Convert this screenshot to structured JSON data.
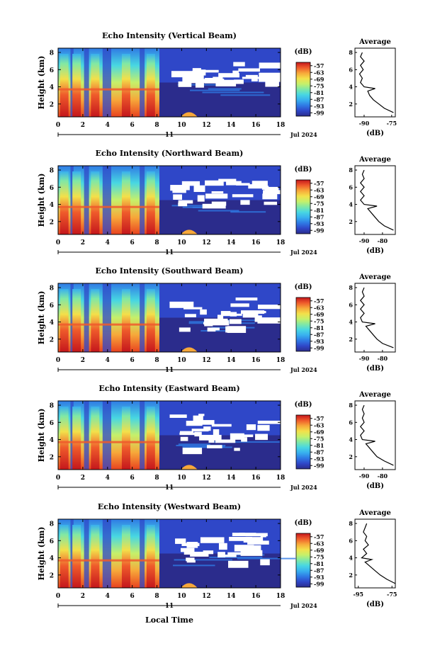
{
  "figure": {
    "xlabel": "Local Time",
    "date_label": "Jul 2024",
    "day_label": "11",
    "ylabel": "Height (km)",
    "colorbar_unit": "(dB)",
    "colorbar_ticks": [
      "-57",
      "-63",
      "-69",
      "-75",
      "-81",
      "-87",
      "-93",
      "-99"
    ],
    "avg_title": "Average",
    "avg_xlabel": "(dB)",
    "x_ticks": [
      "0",
      "2",
      "4",
      "6",
      "8",
      "10",
      "12",
      "14",
      "16",
      "18"
    ],
    "y_ticks": [
      "2",
      "4",
      "6",
      "8"
    ],
    "colormap": [
      "#2b2c8c",
      "#2f47c8",
      "#2f7ae5",
      "#38b0ef",
      "#48d7e2",
      "#7fe8a6",
      "#c6f06a",
      "#f3e04a",
      "#f7a83a",
      "#ef5b2b",
      "#c4161c"
    ]
  },
  "chart_data": [
    {
      "type": "heatmap",
      "title": "Echo Intensity (Vertical Beam)",
      "x": [
        0,
        18
      ],
      "xlim": [
        0,
        18
      ],
      "y": [
        0.5,
        8
      ],
      "ylim": [
        0.5,
        8.5
      ],
      "zlim": [
        -99,
        -57
      ],
      "colorbar_label": "(dB)",
      "features": {
        "tall_columns_hours": [
          0.5,
          1.5,
          3.0,
          5.5,
          7.5
        ],
        "bright_layer_km": 3.7,
        "convective_end_hour": 8.2,
        "weak_echo_bump_hour": 10.6,
        "no_data_region": {
          "hours": [
            9,
            17
          ],
          "km": [
            4.5,
            7
          ]
        }
      },
      "average_profile": {
        "title": "Average",
        "xlabel": "(dB)",
        "xlim": [
          -95,
          -73
        ],
        "xticks": [
          -90,
          -75
        ],
        "height_km": [
          1,
          1.5,
          2,
          2.5,
          3,
          3.5,
          3.8,
          4,
          4.5,
          5,
          5.5,
          6,
          6.5,
          7,
          7.5,
          8
        ],
        "db": [
          -74,
          -79,
          -82,
          -85,
          -87,
          -88,
          -84,
          -90,
          -92,
          -91,
          -92.5,
          -90.5,
          -92,
          -90,
          -92,
          -91
        ]
      }
    },
    {
      "type": "heatmap",
      "title": "Echo Intensity (Northward Beam)",
      "x": [
        0,
        18
      ],
      "xlim": [
        0,
        18
      ],
      "y": [
        0.5,
        8
      ],
      "ylim": [
        0.5,
        8.5
      ],
      "zlim": [
        -99,
        -57
      ],
      "colorbar_label": "(dB)",
      "features": {
        "tall_columns_hours": [
          0.5,
          1.5,
          3.0,
          5.5,
          7.5
        ],
        "bright_layer_km": 3.7,
        "convective_end_hour": 8.2,
        "weak_echo_bump_hour": 10.6,
        "no_data_region": {
          "hours": [
            9,
            17.5
          ],
          "km": [
            4.0,
            7
          ]
        }
      },
      "average_profile": {
        "title": "Average",
        "xlabel": "(dB)",
        "xlim": [
          -95,
          -73
        ],
        "xticks": [
          -90,
          -80
        ],
        "height_km": [
          1,
          1.5,
          2,
          2.5,
          3,
          3.5,
          3.8,
          4,
          4.5,
          5,
          5.5,
          6,
          6.5,
          7,
          7.5,
          8
        ],
        "db": [
          -74,
          -79,
          -82,
          -84,
          -86,
          -88,
          -83,
          -90,
          -92,
          -90,
          -92,
          -90,
          -92,
          -90,
          -91,
          -90
        ]
      }
    },
    {
      "type": "heatmap",
      "title": "Echo Intensity (Southward Beam)",
      "x": [
        0,
        18
      ],
      "xlim": [
        0,
        18
      ],
      "y": [
        0.5,
        8
      ],
      "ylim": [
        0.5,
        8.5
      ],
      "zlim": [
        -99,
        -57
      ],
      "colorbar_label": "(dB)",
      "features": {
        "tall_columns_hours": [
          0.5,
          1.5,
          3.0,
          5.5,
          7.5
        ],
        "bright_layer_km": 3.7,
        "convective_end_hour": 8.2,
        "weak_echo_bump_hour": 10.6,
        "no_data_region": {
          "hours": [
            9,
            17
          ],
          "km": [
            3.0,
            7
          ]
        }
      },
      "average_profile": {
        "title": "Average",
        "xlabel": "(dB)",
        "xlim": [
          -95,
          -73
        ],
        "xticks": [
          -90,
          -80
        ],
        "height_km": [
          1,
          1.5,
          2,
          2.5,
          3,
          3.5,
          3.8,
          4,
          4.5,
          5,
          5.5,
          6,
          6.5,
          7,
          7.5,
          8
        ],
        "db": [
          -74,
          -80,
          -83,
          -85,
          -87,
          -89,
          -84,
          -91,
          -92,
          -90,
          -92,
          -90,
          -92,
          -90,
          -91,
          -90
        ]
      }
    },
    {
      "type": "heatmap",
      "title": "Echo Intensity (Eastward Beam)",
      "x": [
        0,
        18
      ],
      "xlim": [
        0,
        18
      ],
      "y": [
        0.5,
        8
      ],
      "ylim": [
        0.5,
        8.5
      ],
      "zlim": [
        -99,
        -57
      ],
      "colorbar_label": "(dB)",
      "features": {
        "tall_columns_hours": [
          0.5,
          1.5,
          3.0,
          5.5,
          7.5
        ],
        "bright_layer_km": 3.7,
        "convective_end_hour": 8.2,
        "weak_echo_bump_hour": 10.6,
        "no_data_region": {
          "hours": [
            9,
            17
          ],
          "km": [
            3.0,
            7
          ]
        }
      },
      "average_profile": {
        "title": "Average",
        "xlabel": "(dB)",
        "xlim": [
          -95,
          -73
        ],
        "xticks": [
          -90,
          -80
        ],
        "height_km": [
          1,
          1.5,
          2,
          2.5,
          3,
          3.5,
          3.8,
          4,
          4.5,
          5,
          5.5,
          6,
          6.5,
          7,
          7.5,
          8
        ],
        "db": [
          -74,
          -79,
          -83,
          -85,
          -87,
          -89,
          -84,
          -91,
          -92,
          -90,
          -92,
          -90,
          -91,
          -90,
          -91,
          -90
        ]
      }
    },
    {
      "type": "heatmap",
      "title": "Echo Intensity (Westward Beam)",
      "x": [
        0,
        18
      ],
      "xlim": [
        0,
        18
      ],
      "y": [
        0.5,
        8
      ],
      "ylim": [
        0.5,
        8.5
      ],
      "zlim": [
        -99,
        -57
      ],
      "colorbar_label": "(dB)",
      "features": {
        "tall_columns_hours": [
          0.5,
          1.5,
          3.0,
          5.5,
          7.5
        ],
        "bright_layer_km": 3.7,
        "convective_end_hour": 8.2,
        "weak_echo_bump_hour": 10.6,
        "no_data_region": {
          "hours": [
            9,
            17
          ],
          "km": [
            3.5,
            7
          ]
        }
      },
      "average_profile": {
        "title": "Average",
        "xlabel": "(dB)",
        "xlim": [
          -97,
          -73
        ],
        "xticks": [
          -95,
          -75
        ],
        "height_km": [
          1,
          1.5,
          2,
          2.5,
          3,
          3.5,
          3.8,
          4,
          4.5,
          5,
          5.5,
          6,
          6.5,
          7,
          7.5,
          8
        ],
        "db": [
          -73,
          -78,
          -82,
          -85,
          -88,
          -91,
          -87,
          -93,
          -90,
          -92,
          -89,
          -91,
          -90,
          -92,
          -91,
          -90
        ]
      }
    }
  ]
}
